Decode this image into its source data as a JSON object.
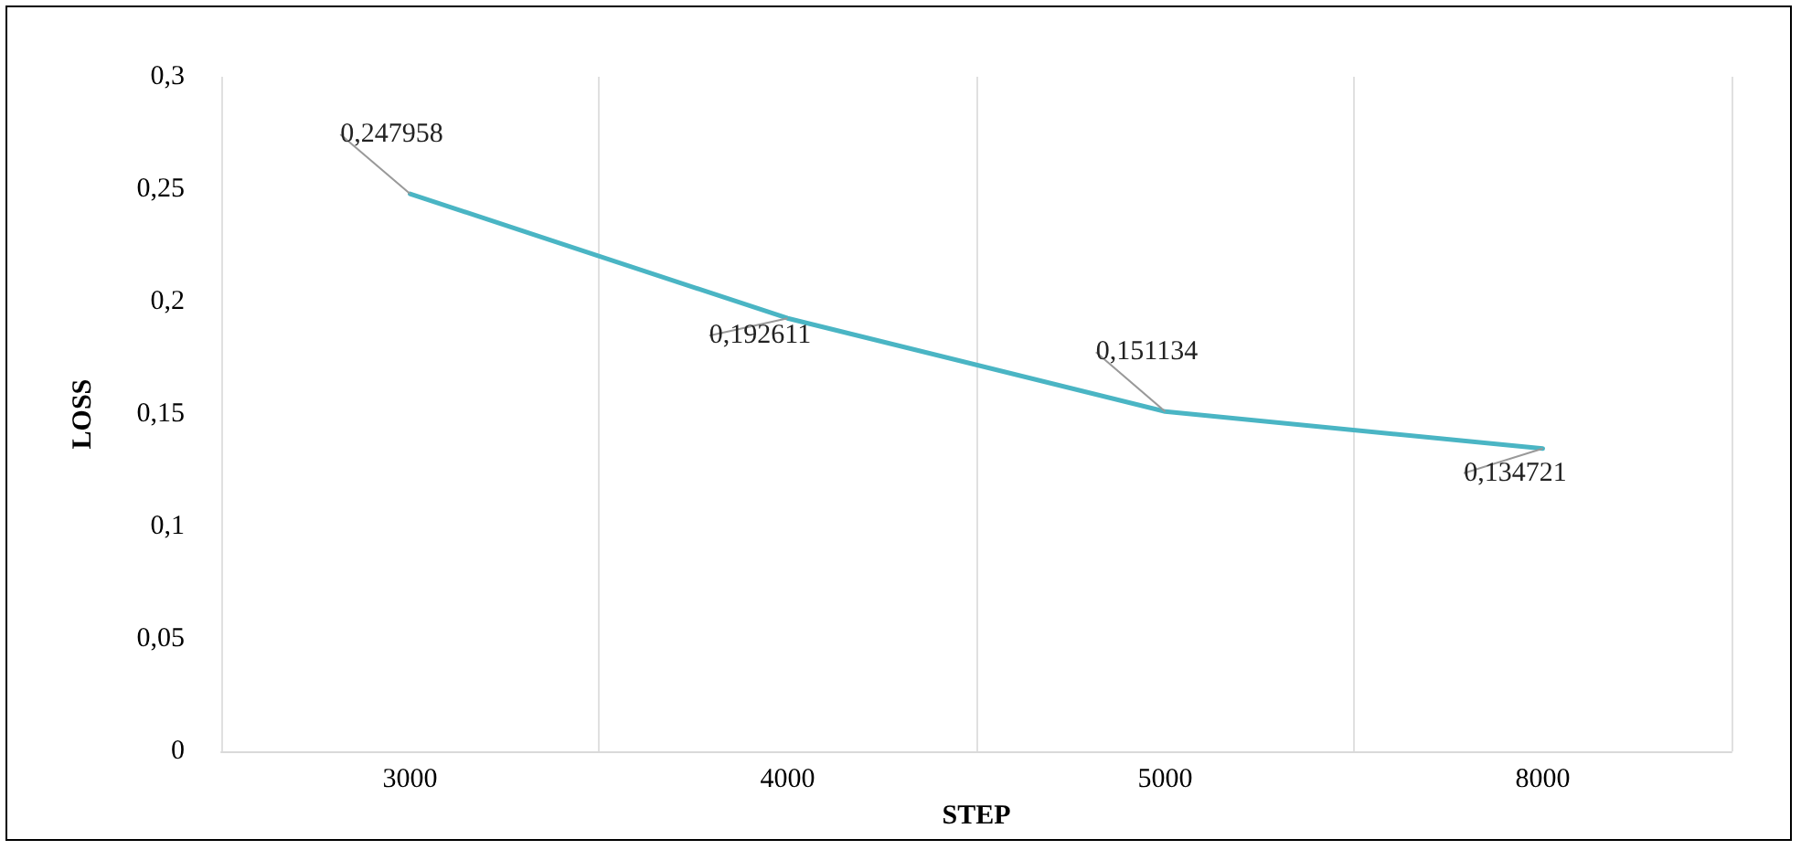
{
  "chart_data": {
    "type": "line",
    "xlabel": "STEP",
    "ylabel": "LOSS",
    "categories": [
      "3000",
      "4000",
      "5000",
      "8000"
    ],
    "series": [
      {
        "color": "#4ab5c4",
        "values": [
          0.247958,
          0.192611,
          0.151134,
          0.134721
        ],
        "value_labels": [
          "0,247958",
          "0,192611",
          "0,151134",
          "0,134721"
        ]
      }
    ],
    "ylim": [
      0,
      0.3
    ],
    "yticks": [
      {
        "value": 0,
        "label": "0"
      },
      {
        "value": 0.05,
        "label": "0,05"
      },
      {
        "value": 0.1,
        "label": "0,1"
      },
      {
        "value": 0.15,
        "label": "0,15"
      },
      {
        "value": 0.2,
        "label": "0,2"
      },
      {
        "value": 0.25,
        "label": "0,25"
      },
      {
        "value": 0.3,
        "label": "0,3"
      }
    ],
    "grid": "x",
    "marker": "none",
    "line_style": "solid"
  }
}
